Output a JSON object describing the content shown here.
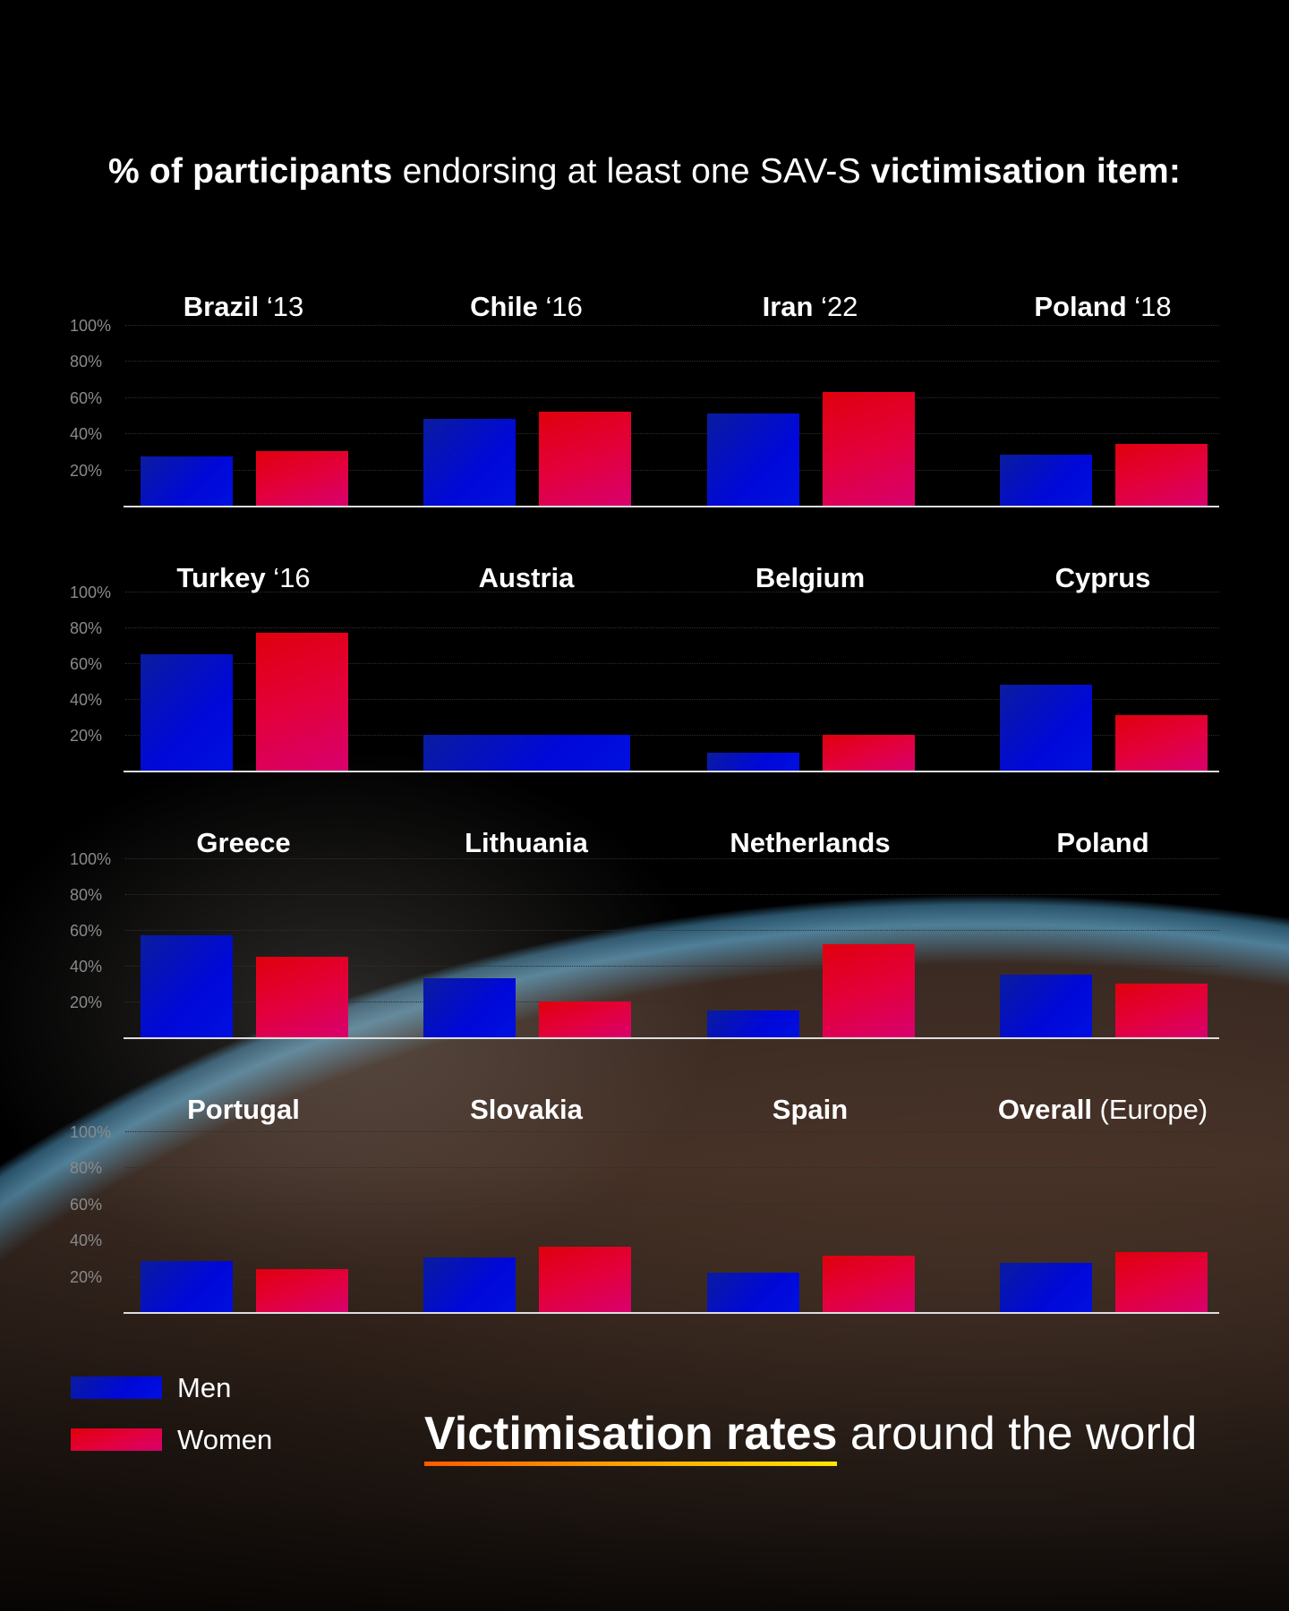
{
  "title": {
    "bold1": "% of participants",
    "normal": " endorsing at least one SAV-S ",
    "bold2": "victimisation item:"
  },
  "colors": {
    "men": "#0008d8",
    "women": "#e0003a",
    "accent_underline": "#ffa400"
  },
  "legend": {
    "men": "Men",
    "women": "Women"
  },
  "footer": {
    "highlight": "Victimisation rates",
    "rest": " around the world"
  },
  "chart_data": {
    "type": "bar",
    "ylim": [
      0,
      100
    ],
    "yticks": [
      "100%",
      "80%",
      "60%",
      "40%",
      "20%"
    ],
    "series": [
      "Men",
      "Women"
    ],
    "panels": [
      {
        "name": "Brazil",
        "suffix": " ‘13",
        "men": 27,
        "women": 30
      },
      {
        "name": "Chile",
        "suffix": " ‘16",
        "men": 48,
        "women": 52
      },
      {
        "name": "Iran",
        "suffix": " ‘22",
        "men": 51,
        "women": 63
      },
      {
        "name": "Poland",
        "suffix": " ‘18",
        "men": 28,
        "women": 34
      },
      {
        "name": "Turkey",
        "suffix": " ‘16",
        "men": 65,
        "women": 77
      },
      {
        "name": "Austria",
        "suffix": "",
        "combined": 20
      },
      {
        "name": "Belgium",
        "suffix": "",
        "men": 10,
        "women": 20
      },
      {
        "name": "Cyprus",
        "suffix": "",
        "men": 48,
        "women": 31
      },
      {
        "name": "Greece",
        "suffix": "",
        "men": 57,
        "women": 45
      },
      {
        "name": "Lithuania",
        "suffix": "",
        "men": 33,
        "women": 20
      },
      {
        "name": "Netherlands",
        "suffix": "",
        "men": 15,
        "women": 52
      },
      {
        "name": "Poland",
        "suffix": "",
        "men": 35,
        "women": 30
      },
      {
        "name": "Portugal",
        "suffix": "",
        "men": 28,
        "women": 24
      },
      {
        "name": "Slovakia",
        "suffix": "",
        "men": 30,
        "women": 36
      },
      {
        "name": "Spain",
        "suffix": "",
        "men": 22,
        "women": 31
      },
      {
        "name": "Overall",
        "suffix": " (Europe)",
        "men": 27,
        "women": 33
      }
    ]
  }
}
